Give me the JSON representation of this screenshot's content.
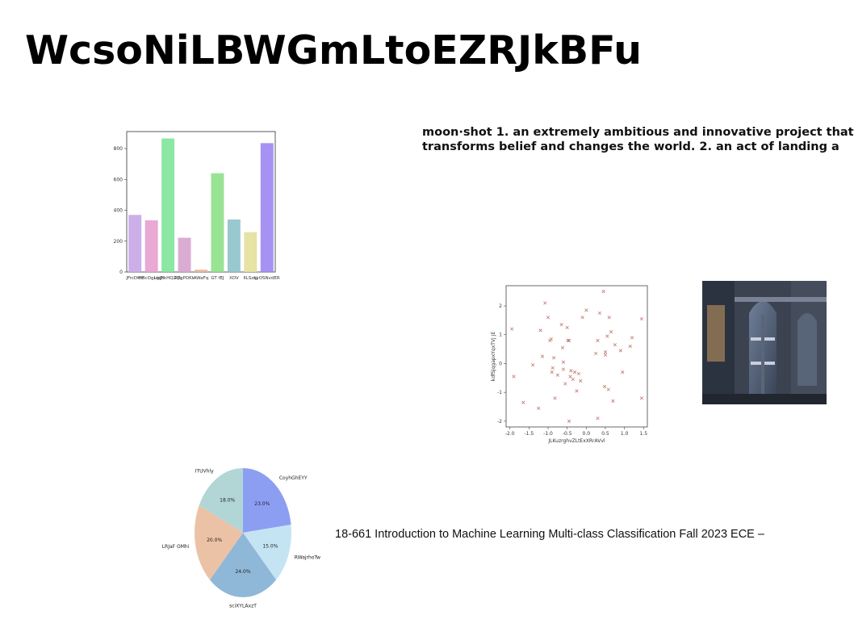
{
  "title": "WcsoNiLBWGmLtoEZRJkBFu",
  "quote": {
    "line1": "moon·shot 1. an extremely ambitious and innovative project that",
    "line2": "transforms belief and changes the world. 2. an act of landing a"
  },
  "footer_text": "18-661 Introduction to Machine Learning Multi-class Classification Fall 2023 ECE –",
  "photo": {
    "description_icon": "building-facade-photo"
  },
  "chart_data": [
    {
      "type": "bar",
      "categories": [
        "JFrcDKtt",
        "HBcOgLipJY",
        "uyjhkHQZqk",
        "RTgPOKk",
        "AWaFq",
        "GT fEJ",
        "XDV",
        "lILSzqi",
        "LyOSNvdER"
      ],
      "values": [
        370,
        335,
        865,
        222,
        15,
        640,
        340,
        258,
        835
      ],
      "colors": [
        "#c7a6e6",
        "#e6a0cf",
        "#7fe39a",
        "#d6a3cf",
        "#e8b59a",
        "#8ee08a",
        "#8ec2cc",
        "#e3e09a",
        "#9b86f2"
      ],
      "yticks": [
        0,
        200,
        400,
        600,
        800
      ],
      "ylim": [
        0,
        910
      ]
    },
    {
      "type": "scatter",
      "xlabel": "JLKuzrghvZLtExXRrAVvl",
      "ylabel": "kdfSjqgapxYqxTVJ JE",
      "xticks": [
        -2.0,
        -1.5,
        -1.0,
        -0.5,
        0.0,
        0.5,
        1.0,
        1.5
      ],
      "yticks": [
        -2,
        -1,
        0,
        1,
        2
      ],
      "xlim": [
        -2.1,
        1.6
      ],
      "ylim": [
        -2.2,
        2.7
      ],
      "marker_color": "#c47a6e",
      "points": [
        [
          -1.95,
          1.2
        ],
        [
          -1.9,
          -0.45
        ],
        [
          -1.65,
          -1.35
        ],
        [
          -1.4,
          -0.05
        ],
        [
          -1.25,
          -1.55
        ],
        [
          -1.2,
          1.15
        ],
        [
          -1.15,
          0.25
        ],
        [
          -1.08,
          2.1
        ],
        [
          -1.0,
          1.6
        ],
        [
          -0.95,
          0.8
        ],
        [
          -0.92,
          0.85
        ],
        [
          -0.9,
          -0.3
        ],
        [
          -0.88,
          -0.15
        ],
        [
          -0.85,
          0.2
        ],
        [
          -0.82,
          -1.2
        ],
        [
          -0.75,
          -0.4
        ],
        [
          -0.65,
          1.35
        ],
        [
          -0.62,
          0.55
        ],
        [
          -0.6,
          -0.2
        ],
        [
          -0.6,
          0.05
        ],
        [
          -0.55,
          -0.7
        ],
        [
          -0.5,
          1.25
        ],
        [
          -0.48,
          0.8
        ],
        [
          -0.45,
          0.8
        ],
        [
          -0.42,
          -0.45
        ],
        [
          -0.4,
          -0.25
        ],
        [
          -0.35,
          -0.55
        ],
        [
          -0.3,
          -0.3
        ],
        [
          -0.25,
          -0.95
        ],
        [
          -0.2,
          -0.35
        ],
        [
          -0.15,
          -0.6
        ],
        [
          -0.1,
          1.6
        ],
        [
          0.0,
          1.85
        ],
        [
          0.25,
          0.35
        ],
        [
          0.3,
          0.8
        ],
        [
          0.35,
          1.75
        ],
        [
          0.3,
          -1.9
        ],
        [
          0.45,
          2.5
        ],
        [
          0.48,
          -0.8
        ],
        [
          0.5,
          0.3
        ],
        [
          0.5,
          0.4
        ],
        [
          0.55,
          0.95
        ],
        [
          0.58,
          -0.9
        ],
        [
          0.6,
          1.6
        ],
        [
          0.65,
          1.1
        ],
        [
          0.7,
          -1.3
        ],
        [
          0.75,
          0.65
        ],
        [
          0.9,
          0.45
        ],
        [
          0.95,
          -0.3
        ],
        [
          1.15,
          0.6
        ],
        [
          1.2,
          0.9
        ],
        [
          1.45,
          1.55
        ],
        [
          1.45,
          -1.2
        ],
        [
          -0.45,
          -2.0
        ]
      ]
    },
    {
      "type": "pie",
      "labels": [
        "CoyhGhEYY",
        "RWajrhoTw",
        "sciXYLAxzT",
        "LRJaF OMhi",
        "ITUVhly"
      ],
      "values": [
        23.0,
        15.0,
        24.0,
        20.0,
        18.0
      ],
      "pct_labels": [
        "23.0%",
        "15.0%",
        "24.0%",
        "20.0%",
        "18.0%"
      ],
      "colors": [
        "#8c9ef2",
        "#c4e4f4",
        "#8fb8d8",
        "#ecc2a6",
        "#b2d6d6"
      ]
    }
  ]
}
